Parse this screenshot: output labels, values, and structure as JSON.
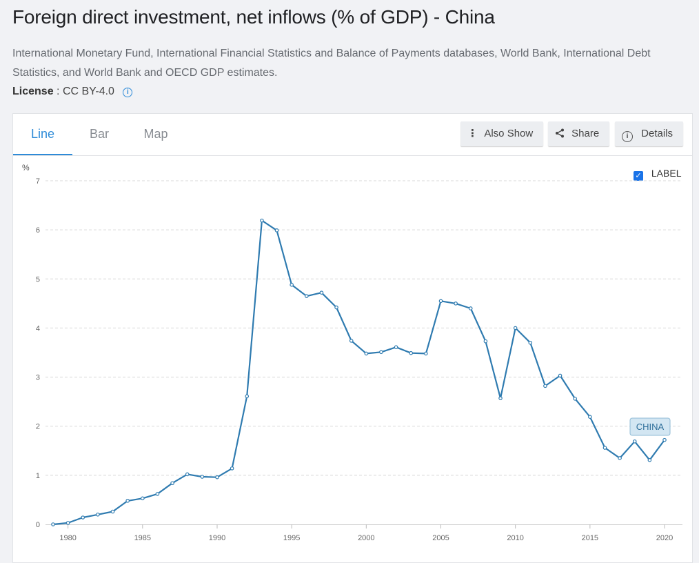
{
  "header": {
    "title": "Foreign direct investment, net inflows (% of GDP) - China",
    "source": "International Monetary Fund, International Financial Statistics and Balance of Payments databases, World Bank, International Debt Statistics, and World Bank and OECD GDP estimates.",
    "license_label": "License",
    "license_value": ": CC BY-4.0",
    "info_icon": "i"
  },
  "tabs": [
    {
      "label": "Line",
      "active": true
    },
    {
      "label": "Bar",
      "active": false
    },
    {
      "label": "Map",
      "active": false
    }
  ],
  "toolbar": {
    "also_show": "Also Show",
    "share": "Share",
    "details": "Details"
  },
  "legend": {
    "label_toggle": "LABEL",
    "checked": true
  },
  "colors": {
    "accent": "#2e8bd8",
    "line": "#2f7bb0",
    "badge_bg": "#d3e6f2",
    "badge_border": "#8fbbd6",
    "badge_text": "#2f6f9a"
  },
  "chart_data": {
    "type": "line",
    "ylabel": "%",
    "ylim": [
      0,
      7
    ],
    "yticks": [
      0,
      1,
      2,
      3,
      4,
      5,
      6,
      7
    ],
    "xlim": [
      1979,
      2021
    ],
    "xticks": [
      1980,
      1985,
      1990,
      1995,
      2000,
      2005,
      2010,
      2015,
      2020
    ],
    "grid": true,
    "series": [
      {
        "name": "CHINA",
        "x": [
          1979,
          1980,
          1981,
          1982,
          1983,
          1984,
          1985,
          1986,
          1987,
          1988,
          1989,
          1990,
          1991,
          1992,
          1993,
          1994,
          1995,
          1996,
          1997,
          1998,
          1999,
          2000,
          2001,
          2002,
          2003,
          2004,
          2005,
          2006,
          2007,
          2008,
          2009,
          2010,
          2011,
          2012,
          2013,
          2014,
          2015,
          2016,
          2017,
          2018,
          2019,
          2020
        ],
        "y": [
          0.0,
          0.03,
          0.14,
          0.2,
          0.26,
          0.48,
          0.53,
          0.62,
          0.84,
          1.02,
          0.97,
          0.96,
          1.14,
          2.61,
          6.19,
          5.99,
          4.88,
          4.65,
          4.72,
          4.42,
          3.74,
          3.48,
          3.51,
          3.61,
          3.49,
          3.48,
          4.55,
          4.5,
          4.4,
          3.73,
          2.57,
          4.0,
          3.7,
          2.82,
          3.03,
          2.56,
          2.19,
          1.56,
          1.35,
          1.69,
          1.31,
          1.72
        ]
      }
    ]
  }
}
